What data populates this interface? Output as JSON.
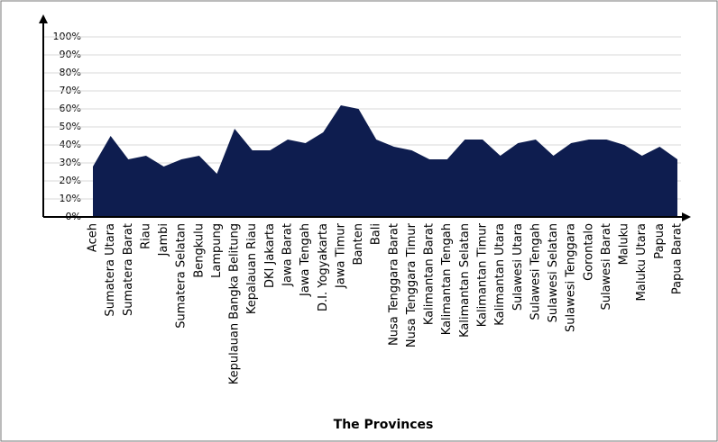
{
  "chart_data": {
    "type": "area",
    "x_label": "The Provinces",
    "categories": [
      "Aceh",
      "Sumatera Utara",
      "Sumatera Barat",
      "Riau",
      "Jambi",
      "Sumatera Selatan",
      "Bengkulu",
      "Lampung",
      "Kepulauan Bangka Belitung",
      "Kepalauan Riau",
      "DKI Jakarta",
      "Jawa Barat",
      "Jawa Tengah",
      "D.I. Yogyakarta",
      "Jawa Timur",
      "Banten",
      "Bali",
      "Nusa Tenggara Barat",
      "Nusa Tenggara Timur",
      "Kalimantan Barat",
      "Kalimantan Tengah",
      "Kalimantan Selatan",
      "Kalimantan Timur",
      "Kalimantan Utara",
      "Sulawesi Utara",
      "Sulawesi Tengah",
      "Sulawesi Selatan",
      "Sulawesi Tenggara",
      "Gorontalo",
      "Sulawesi Barat",
      "Maluku",
      "Maluku Utara",
      "Papua",
      "Papua Barat"
    ],
    "values": [
      28,
      45,
      32,
      34,
      28,
      32,
      34,
      24,
      49,
      37,
      37,
      43,
      41,
      47,
      62,
      60,
      43,
      39,
      37,
      32,
      32,
      43,
      43,
      34,
      41,
      43,
      34,
      41,
      43,
      43,
      40,
      34,
      39,
      32
    ],
    "color": "#0e1d4f",
    "ylim": [
      0,
      100
    ],
    "yticks": [
      {
        "value": 0,
        "label": "0%"
      },
      {
        "value": 10,
        "label": "10%"
      },
      {
        "value": 20,
        "label": "20%"
      },
      {
        "value": 30,
        "label": "30%"
      },
      {
        "value": 40,
        "label": "40%"
      },
      {
        "value": 50,
        "label": "50%"
      },
      {
        "value": 60,
        "label": "60%"
      },
      {
        "value": 70,
        "label": "70%"
      },
      {
        "value": 80,
        "label": "80%"
      },
      {
        "value": 90,
        "label": "90%"
      },
      {
        "value": 100,
        "label": "100%"
      }
    ],
    "grid": true
  }
}
